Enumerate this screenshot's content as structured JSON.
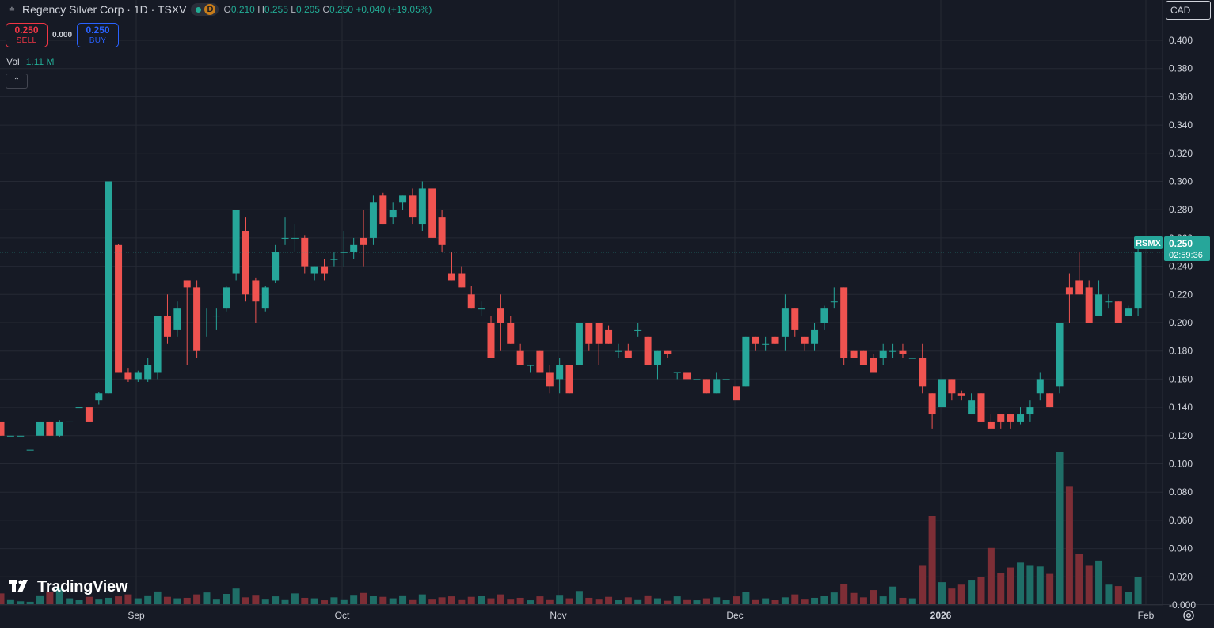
{
  "header": {
    "symbol_title": "Regency Silver Corp · 1D · TSXV",
    "interval_badge": "D",
    "open_label": "O",
    "open_value": "0.210",
    "high_label": "H",
    "high_value": "0.255",
    "low_label": "L",
    "low_value": "0.205",
    "close_label": "C",
    "close_value": "0.250",
    "change": "+0.040 (+19.05%)"
  },
  "trade": {
    "sell_price": "0.250",
    "sell_label": "SELL",
    "spread": "0.000",
    "buy_price": "0.250",
    "buy_label": "BUY"
  },
  "volume_legend": {
    "label": "Vol",
    "value": "1.11 M"
  },
  "currency": "CAD",
  "price_badge": {
    "ticker": "RSMX",
    "price": "0.250",
    "countdown": "02:59:36"
  },
  "branding": "TradingView",
  "icons": {
    "symbol": "symbol-logo-icon",
    "collapse": "chevron-up-icon",
    "currency": "currency-selector",
    "settings": "settings-gear-icon",
    "logo": "tradingview-logo-icon"
  },
  "colors": {
    "background": "#161a25",
    "up": "#22ab94",
    "down": "#f23645",
    "candle_up": "#26a69a",
    "candle_down": "#ef5350",
    "volume_up": "#1f6e67",
    "volume_down": "#7d2e36",
    "grid": "#252934",
    "text": "#d1d4dc"
  },
  "chart_data": {
    "type": "candlestick",
    "y_axis_labels": [
      "0.400",
      "0.380",
      "0.360",
      "0.340",
      "0.320",
      "0.300",
      "0.280",
      "0.260",
      "0.240",
      "0.220",
      "0.200",
      "0.180",
      "0.160",
      "0.140",
      "0.120",
      "0.100",
      "0.080",
      "0.060",
      "0.040",
      "0.020",
      "-0.000"
    ],
    "x_axis_labels": [
      "Sep",
      "Oct",
      "Nov",
      "Dec",
      "2026",
      "Feb"
    ],
    "x_axis_positions": [
      172,
      432,
      705,
      928,
      1188,
      1447
    ],
    "ylim": [
      -0.008,
      0.412
    ],
    "last_price": 0.25,
    "grid": true,
    "volume_overlay": true,
    "volume_max": 31,
    "candles": [
      {
        "o": 0.13,
        "h": 0.13,
        "l": 0.12,
        "c": 0.12,
        "v": 2.2
      },
      {
        "o": 0.12,
        "h": 0.12,
        "l": 0.12,
        "c": 0.12,
        "v": 1.0
      },
      {
        "o": 0.12,
        "h": 0.12,
        "l": 0.12,
        "c": 0.12,
        "v": 0.6
      },
      {
        "o": 0.11,
        "h": 0.11,
        "l": 0.11,
        "c": 0.11,
        "v": 0.5
      },
      {
        "o": 0.12,
        "h": 0.131,
        "l": 0.119,
        "c": 0.13,
        "v": 1.8
      },
      {
        "o": 0.13,
        "h": 0.13,
        "l": 0.12,
        "c": 0.12,
        "v": 2.5
      },
      {
        "o": 0.12,
        "h": 0.131,
        "l": 0.119,
        "c": 0.13,
        "v": 3.2
      },
      {
        "o": 0.13,
        "h": 0.13,
        "l": 0.13,
        "c": 0.13,
        "v": 1.2
      },
      {
        "o": 0.14,
        "h": 0.14,
        "l": 0.14,
        "c": 0.14,
        "v": 0.9
      },
      {
        "o": 0.14,
        "h": 0.14,
        "l": 0.13,
        "c": 0.13,
        "v": 1.5
      },
      {
        "o": 0.145,
        "h": 0.151,
        "l": 0.142,
        "c": 0.15,
        "v": 1.1
      },
      {
        "o": 0.15,
        "h": 0.3,
        "l": 0.15,
        "c": 0.3,
        "v": 1.3
      },
      {
        "o": 0.255,
        "h": 0.256,
        "l": 0.165,
        "c": 0.165,
        "v": 1.6
      },
      {
        "o": 0.165,
        "h": 0.168,
        "l": 0.158,
        "c": 0.16,
        "v": 2.0
      },
      {
        "o": 0.16,
        "h": 0.166,
        "l": 0.158,
        "c": 0.165,
        "v": 1.2
      },
      {
        "o": 0.16,
        "h": 0.175,
        "l": 0.158,
        "c": 0.17,
        "v": 1.8
      },
      {
        "o": 0.165,
        "h": 0.205,
        "l": 0.16,
        "c": 0.205,
        "v": 2.6
      },
      {
        "o": 0.205,
        "h": 0.22,
        "l": 0.185,
        "c": 0.19,
        "v": 1.5
      },
      {
        "o": 0.195,
        "h": 0.215,
        "l": 0.19,
        "c": 0.21,
        "v": 1.2
      },
      {
        "o": 0.23,
        "h": 0.23,
        "l": 0.17,
        "c": 0.225,
        "v": 1.3
      },
      {
        "o": 0.225,
        "h": 0.23,
        "l": 0.175,
        "c": 0.18,
        "v": 2.0
      },
      {
        "o": 0.2,
        "h": 0.21,
        "l": 0.19,
        "c": 0.2,
        "v": 2.4
      },
      {
        "o": 0.205,
        "h": 0.21,
        "l": 0.195,
        "c": 0.205,
        "v": 1.1
      },
      {
        "o": 0.21,
        "h": 0.226,
        "l": 0.208,
        "c": 0.225,
        "v": 2.1
      },
      {
        "o": 0.235,
        "h": 0.28,
        "l": 0.23,
        "c": 0.28,
        "v": 3.2
      },
      {
        "o": 0.265,
        "h": 0.275,
        "l": 0.215,
        "c": 0.22,
        "v": 1.4
      },
      {
        "o": 0.23,
        "h": 0.232,
        "l": 0.2,
        "c": 0.215,
        "v": 1.9
      },
      {
        "o": 0.21,
        "h": 0.226,
        "l": 0.208,
        "c": 0.225,
        "v": 1.1
      },
      {
        "o": 0.23,
        "h": 0.255,
        "l": 0.228,
        "c": 0.25,
        "v": 1.6
      },
      {
        "o": 0.26,
        "h": 0.275,
        "l": 0.255,
        "c": 0.26,
        "v": 1.0
      },
      {
        "o": 0.26,
        "h": 0.27,
        "l": 0.25,
        "c": 0.26,
        "v": 2.2
      },
      {
        "o": 0.26,
        "h": 0.262,
        "l": 0.235,
        "c": 0.24,
        "v": 1.3
      },
      {
        "o": 0.235,
        "h": 0.24,
        "l": 0.23,
        "c": 0.24,
        "v": 1.2
      },
      {
        "o": 0.24,
        "h": 0.245,
        "l": 0.23,
        "c": 0.235,
        "v": 0.8
      },
      {
        "o": 0.245,
        "h": 0.25,
        "l": 0.24,
        "c": 0.245,
        "v": 1.4
      },
      {
        "o": 0.25,
        "h": 0.265,
        "l": 0.24,
        "c": 0.25,
        "v": 1.0
      },
      {
        "o": 0.25,
        "h": 0.26,
        "l": 0.245,
        "c": 0.255,
        "v": 1.9
      },
      {
        "o": 0.26,
        "h": 0.28,
        "l": 0.24,
        "c": 0.255,
        "v": 2.3
      },
      {
        "o": 0.26,
        "h": 0.29,
        "l": 0.255,
        "c": 0.285,
        "v": 1.7
      },
      {
        "o": 0.29,
        "h": 0.292,
        "l": 0.27,
        "c": 0.27,
        "v": 1.5
      },
      {
        "o": 0.275,
        "h": 0.285,
        "l": 0.27,
        "c": 0.28,
        "v": 1.2
      },
      {
        "o": 0.285,
        "h": 0.29,
        "l": 0.28,
        "c": 0.29,
        "v": 1.8
      },
      {
        "o": 0.29,
        "h": 0.295,
        "l": 0.27,
        "c": 0.275,
        "v": 1.0
      },
      {
        "o": 0.27,
        "h": 0.3,
        "l": 0.265,
        "c": 0.295,
        "v": 2.0
      },
      {
        "o": 0.295,
        "h": 0.295,
        "l": 0.26,
        "c": 0.26,
        "v": 1.1
      },
      {
        "o": 0.275,
        "h": 0.28,
        "l": 0.25,
        "c": 0.255,
        "v": 1.4
      },
      {
        "o": 0.235,
        "h": 0.25,
        "l": 0.23,
        "c": 0.23,
        "v": 1.6
      },
      {
        "o": 0.235,
        "h": 0.24,
        "l": 0.225,
        "c": 0.225,
        "v": 1.0
      },
      {
        "o": 0.22,
        "h": 0.226,
        "l": 0.21,
        "c": 0.21,
        "v": 1.5
      },
      {
        "o": 0.21,
        "h": 0.215,
        "l": 0.205,
        "c": 0.21,
        "v": 1.7
      },
      {
        "o": 0.2,
        "h": 0.205,
        "l": 0.175,
        "c": 0.175,
        "v": 1.2
      },
      {
        "o": 0.21,
        "h": 0.22,
        "l": 0.18,
        "c": 0.2,
        "v": 2.0
      },
      {
        "o": 0.2,
        "h": 0.205,
        "l": 0.185,
        "c": 0.185,
        "v": 1.1
      },
      {
        "o": 0.18,
        "h": 0.185,
        "l": 0.17,
        "c": 0.17,
        "v": 1.3
      },
      {
        "o": 0.17,
        "h": 0.17,
        "l": 0.165,
        "c": 0.17,
        "v": 0.8
      },
      {
        "o": 0.18,
        "h": 0.18,
        "l": 0.165,
        "c": 0.165,
        "v": 1.6
      },
      {
        "o": 0.165,
        "h": 0.17,
        "l": 0.15,
        "c": 0.155,
        "v": 1.0
      },
      {
        "o": 0.16,
        "h": 0.175,
        "l": 0.15,
        "c": 0.17,
        "v": 1.9
      },
      {
        "o": 0.17,
        "h": 0.17,
        "l": 0.15,
        "c": 0.15,
        "v": 1.2
      },
      {
        "o": 0.17,
        "h": 0.2,
        "l": 0.17,
        "c": 0.2,
        "v": 2.7
      },
      {
        "o": 0.2,
        "h": 0.2,
        "l": 0.18,
        "c": 0.185,
        "v": 1.3
      },
      {
        "o": 0.2,
        "h": 0.2,
        "l": 0.17,
        "c": 0.185,
        "v": 1.1
      },
      {
        "o": 0.195,
        "h": 0.198,
        "l": 0.185,
        "c": 0.185,
        "v": 1.5
      },
      {
        "o": 0.18,
        "h": 0.185,
        "l": 0.175,
        "c": 0.18,
        "v": 0.9
      },
      {
        "o": 0.18,
        "h": 0.185,
        "l": 0.175,
        "c": 0.175,
        "v": 1.4
      },
      {
        "o": 0.195,
        "h": 0.2,
        "l": 0.19,
        "c": 0.195,
        "v": 1.0
      },
      {
        "o": 0.19,
        "h": 0.19,
        "l": 0.17,
        "c": 0.17,
        "v": 1.8
      },
      {
        "o": 0.17,
        "h": 0.18,
        "l": 0.16,
        "c": 0.18,
        "v": 1.2
      },
      {
        "o": 0.18,
        "h": 0.18,
        "l": 0.175,
        "c": 0.178,
        "v": 0.7
      },
      {
        "o": 0.165,
        "h": 0.165,
        "l": 0.16,
        "c": 0.165,
        "v": 1.6
      },
      {
        "o": 0.165,
        "h": 0.165,
        "l": 0.16,
        "c": 0.16,
        "v": 1.0
      },
      {
        "o": 0.16,
        "h": 0.16,
        "l": 0.16,
        "c": 0.16,
        "v": 0.8
      },
      {
        "o": 0.16,
        "h": 0.16,
        "l": 0.15,
        "c": 0.15,
        "v": 1.2
      },
      {
        "o": 0.15,
        "h": 0.165,
        "l": 0.15,
        "c": 0.16,
        "v": 1.4
      },
      {
        "o": 0.16,
        "h": 0.16,
        "l": 0.16,
        "c": 0.16,
        "v": 0.9
      },
      {
        "o": 0.155,
        "h": 0.155,
        "l": 0.145,
        "c": 0.145,
        "v": 1.6
      },
      {
        "o": 0.155,
        "h": 0.19,
        "l": 0.155,
        "c": 0.19,
        "v": 2.5
      },
      {
        "o": 0.19,
        "h": 0.19,
        "l": 0.18,
        "c": 0.185,
        "v": 1.0
      },
      {
        "o": 0.185,
        "h": 0.19,
        "l": 0.18,
        "c": 0.185,
        "v": 1.2
      },
      {
        "o": 0.19,
        "h": 0.19,
        "l": 0.185,
        "c": 0.185,
        "v": 0.9
      },
      {
        "o": 0.19,
        "h": 0.22,
        "l": 0.18,
        "c": 0.21,
        "v": 1.4
      },
      {
        "o": 0.21,
        "h": 0.21,
        "l": 0.19,
        "c": 0.195,
        "v": 2.0
      },
      {
        "o": 0.19,
        "h": 0.19,
        "l": 0.18,
        "c": 0.185,
        "v": 1.1
      },
      {
        "o": 0.185,
        "h": 0.2,
        "l": 0.18,
        "c": 0.195,
        "v": 1.3
      },
      {
        "o": 0.2,
        "h": 0.212,
        "l": 0.195,
        "c": 0.21,
        "v": 1.7
      },
      {
        "o": 0.215,
        "h": 0.225,
        "l": 0.21,
        "c": 0.215,
        "v": 2.4
      },
      {
        "o": 0.225,
        "h": 0.225,
        "l": 0.17,
        "c": 0.175,
        "v": 4.2
      },
      {
        "o": 0.18,
        "h": 0.18,
        "l": 0.175,
        "c": 0.175,
        "v": 2.3
      },
      {
        "o": 0.18,
        "h": 0.18,
        "l": 0.17,
        "c": 0.17,
        "v": 1.4
      },
      {
        "o": 0.175,
        "h": 0.178,
        "l": 0.165,
        "c": 0.165,
        "v": 2.9
      },
      {
        "o": 0.175,
        "h": 0.185,
        "l": 0.17,
        "c": 0.18,
        "v": 1.6
      },
      {
        "o": 0.18,
        "h": 0.185,
        "l": 0.175,
        "c": 0.18,
        "v": 3.6
      },
      {
        "o": 0.18,
        "h": 0.185,
        "l": 0.175,
        "c": 0.178,
        "v": 1.3
      },
      {
        "o": 0.175,
        "h": 0.175,
        "l": 0.175,
        "c": 0.175,
        "v": 1.2
      },
      {
        "o": 0.175,
        "h": 0.185,
        "l": 0.15,
        "c": 0.155,
        "v": 8.0
      },
      {
        "o": 0.15,
        "h": 0.15,
        "l": 0.125,
        "c": 0.135,
        "v": 18.0
      },
      {
        "o": 0.14,
        "h": 0.165,
        "l": 0.135,
        "c": 0.16,
        "v": 4.5
      },
      {
        "o": 0.16,
        "h": 0.16,
        "l": 0.145,
        "c": 0.15,
        "v": 3.2
      },
      {
        "o": 0.15,
        "h": 0.152,
        "l": 0.145,
        "c": 0.148,
        "v": 4.0
      },
      {
        "o": 0.135,
        "h": 0.15,
        "l": 0.135,
        "c": 0.145,
        "v": 5.0
      },
      {
        "o": 0.15,
        "h": 0.15,
        "l": 0.13,
        "c": 0.13,
        "v": 5.5
      },
      {
        "o": 0.13,
        "h": 0.135,
        "l": 0.125,
        "c": 0.125,
        "v": 11.5
      },
      {
        "o": 0.135,
        "h": 0.135,
        "l": 0.125,
        "c": 0.13,
        "v": 6.3
      },
      {
        "o": 0.135,
        "h": 0.135,
        "l": 0.125,
        "c": 0.13,
        "v": 7.5
      },
      {
        "o": 0.13,
        "h": 0.14,
        "l": 0.128,
        "c": 0.135,
        "v": 8.5
      },
      {
        "o": 0.135,
        "h": 0.145,
        "l": 0.13,
        "c": 0.14,
        "v": 8.0
      },
      {
        "o": 0.15,
        "h": 0.165,
        "l": 0.145,
        "c": 0.16,
        "v": 7.7
      },
      {
        "o": 0.15,
        "h": 0.15,
        "l": 0.14,
        "c": 0.14,
        "v": 6.2
      },
      {
        "o": 0.155,
        "h": 0.2,
        "l": 0.15,
        "c": 0.2,
        "v": 31.0
      },
      {
        "o": 0.225,
        "h": 0.235,
        "l": 0.2,
        "c": 0.22,
        "v": 24.0
      },
      {
        "o": 0.23,
        "h": 0.25,
        "l": 0.22,
        "c": 0.22,
        "v": 10.2
      },
      {
        "o": 0.225,
        "h": 0.23,
        "l": 0.2,
        "c": 0.2,
        "v": 8.0
      },
      {
        "o": 0.205,
        "h": 0.23,
        "l": 0.205,
        "c": 0.22,
        "v": 8.9
      },
      {
        "o": 0.215,
        "h": 0.22,
        "l": 0.21,
        "c": 0.215,
        "v": 4.0
      },
      {
        "o": 0.215,
        "h": 0.215,
        "l": 0.2,
        "c": 0.2,
        "v": 3.7
      },
      {
        "o": 0.205,
        "h": 0.212,
        "l": 0.205,
        "c": 0.21,
        "v": 2.5
      },
      {
        "o": 0.21,
        "h": 0.255,
        "l": 0.205,
        "c": 0.25,
        "v": 5.5
      }
    ]
  }
}
